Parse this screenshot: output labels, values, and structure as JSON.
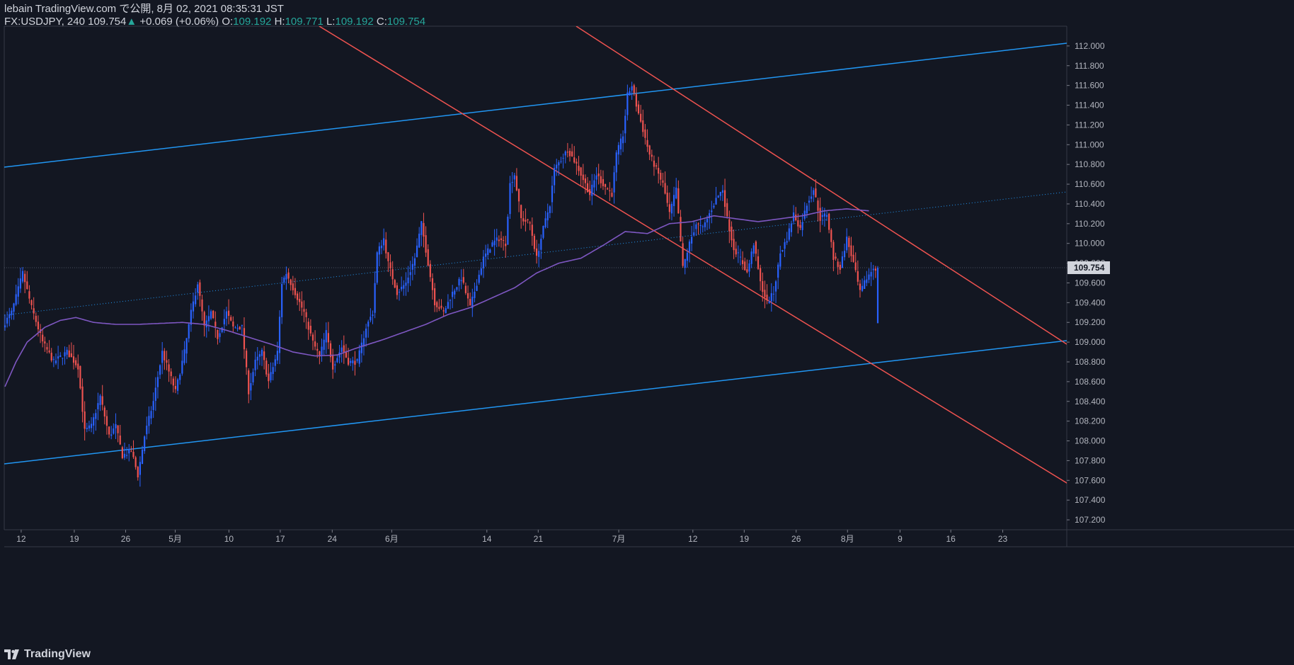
{
  "header": {
    "publish_line": "lebain TradingView.com で公開, 8月 02, 2021 08:35:31 JST",
    "symbol": "FX:USDJPY, 240",
    "last": "109.754",
    "change": "+0.069 (+0.06%)",
    "o_label": "O:",
    "o_value": "109.192",
    "h_label": "H:",
    "h_value": "109.771",
    "l_label": "L:",
    "l_value": "109.192",
    "c_label": "C:",
    "c_value": "109.754"
  },
  "footer": {
    "brand": "TradingView"
  },
  "chart_data": {
    "type": "candlestick",
    "ylim": [
      107.1,
      112.2
    ],
    "y_ticks": [
      "112.000",
      "111.800",
      "111.600",
      "111.400",
      "111.200",
      "111.000",
      "110.800",
      "110.600",
      "110.400",
      "110.200",
      "110.000",
      "109.800",
      "109.600",
      "109.400",
      "109.200",
      "109.000",
      "108.800",
      "108.600",
      "108.400",
      "108.200",
      "108.000",
      "107.800",
      "107.600",
      "107.400",
      "107.200"
    ],
    "x_ticks": [
      "12",
      "19",
      "26",
      "5月",
      "10",
      "17",
      "24",
      "6月",
      "14",
      "21",
      "7月",
      "12",
      "19",
      "26",
      "8月",
      "9",
      "16",
      "23"
    ],
    "last_price_label": "109.754",
    "colors": {
      "up": "#2962ff",
      "down": "#ef5350",
      "ma": "#7e57c2",
      "channel": "#2196f3",
      "trend": "#ef5350",
      "bg": "#131722"
    },
    "close_path": [
      [
        0,
        109.2
      ],
      [
        3,
        109.3
      ],
      [
        8,
        109.7
      ],
      [
        12,
        109.35
      ],
      [
        17,
        109.0
      ],
      [
        22,
        108.8
      ],
      [
        28,
        108.9
      ],
      [
        33,
        108.75
      ],
      [
        36,
        108.1
      ],
      [
        39,
        108.15
      ],
      [
        43,
        108.45
      ],
      [
        47,
        108.05
      ],
      [
        50,
        108.15
      ],
      [
        53,
        107.85
      ],
      [
        57,
        107.9
      ],
      [
        60,
        107.65
      ],
      [
        63,
        108.05
      ],
      [
        67,
        108.4
      ],
      [
        71,
        108.9
      ],
      [
        74,
        108.7
      ],
      [
        77,
        108.5
      ],
      [
        81,
        108.9
      ],
      [
        84,
        109.3
      ],
      [
        87,
        109.6
      ],
      [
        90,
        109.15
      ],
      [
        93,
        109.3
      ],
      [
        96,
        109.05
      ],
      [
        100,
        109.3
      ],
      [
        103,
        109.15
      ],
      [
        107,
        109.15
      ],
      [
        110,
        108.5
      ],
      [
        113,
        108.8
      ],
      [
        116,
        108.9
      ],
      [
        119,
        108.6
      ],
      [
        123,
        108.9
      ],
      [
        125,
        109.6
      ],
      [
        127,
        109.7
      ],
      [
        131,
        109.5
      ],
      [
        135,
        109.3
      ],
      [
        139,
        109.0
      ],
      [
        142,
        108.85
      ],
      [
        145,
        109.1
      ],
      [
        148,
        108.75
      ],
      [
        152,
        108.95
      ],
      [
        155,
        108.8
      ],
      [
        159,
        108.8
      ],
      [
        163,
        109.15
      ],
      [
        166,
        109.3
      ],
      [
        168,
        109.9
      ],
      [
        171,
        110.05
      ],
      [
        173,
        109.8
      ],
      [
        177,
        109.5
      ],
      [
        181,
        109.6
      ],
      [
        185,
        109.85
      ],
      [
        188,
        110.2
      ],
      [
        191,
        109.8
      ],
      [
        194,
        109.4
      ],
      [
        198,
        109.3
      ],
      [
        202,
        109.5
      ],
      [
        206,
        109.65
      ],
      [
        210,
        109.35
      ],
      [
        213,
        109.6
      ],
      [
        216,
        109.85
      ],
      [
        220,
        110.0
      ],
      [
        223,
        110.05
      ],
      [
        226,
        110.0
      ],
      [
        228,
        110.6
      ],
      [
        230,
        110.7
      ],
      [
        233,
        110.25
      ],
      [
        237,
        110.2
      ],
      [
        240,
        109.85
      ],
      [
        243,
        110.15
      ],
      [
        246,
        110.4
      ],
      [
        248,
        110.75
      ],
      [
        251,
        110.85
      ],
      [
        254,
        110.95
      ],
      [
        258,
        110.8
      ],
      [
        261,
        110.65
      ],
      [
        264,
        110.5
      ],
      [
        267,
        110.7
      ],
      [
        270,
        110.6
      ],
      [
        274,
        110.5
      ],
      [
        276,
        110.9
      ],
      [
        279,
        111.1
      ],
      [
        281,
        111.5
      ],
      [
        283,
        111.6
      ],
      [
        285,
        111.4
      ],
      [
        288,
        111.15
      ],
      [
        291,
        110.9
      ],
      [
        294,
        110.75
      ],
      [
        297,
        110.6
      ],
      [
        300,
        110.3
      ],
      [
        303,
        110.55
      ],
      [
        306,
        109.75
      ],
      [
        309,
        110.0
      ],
      [
        312,
        110.2
      ],
      [
        315,
        110.15
      ],
      [
        318,
        110.3
      ],
      [
        321,
        110.45
      ],
      [
        324,
        110.55
      ],
      [
        326,
        110.25
      ],
      [
        329,
        109.95
      ],
      [
        332,
        109.85
      ],
      [
        335,
        109.7
      ],
      [
        338,
        110.0
      ],
      [
        341,
        109.6
      ],
      [
        344,
        109.4
      ],
      [
        347,
        109.5
      ],
      [
        350,
        109.9
      ],
      [
        353,
        110.05
      ],
      [
        356,
        110.3
      ],
      [
        359,
        110.15
      ],
      [
        362,
        110.4
      ],
      [
        365,
        110.55
      ],
      [
        368,
        110.25
      ],
      [
        371,
        110.3
      ],
      [
        374,
        109.85
      ],
      [
        377,
        109.75
      ],
      [
        380,
        110.05
      ],
      [
        383,
        109.8
      ],
      [
        386,
        109.5
      ],
      [
        389,
        109.65
      ],
      [
        392,
        109.75
      ]
    ],
    "ma_path": [
      [
        0,
        108.55
      ],
      [
        5,
        108.8
      ],
      [
        10,
        109.0
      ],
      [
        18,
        109.15
      ],
      [
        25,
        109.22
      ],
      [
        32,
        109.25
      ],
      [
        40,
        109.2
      ],
      [
        50,
        109.18
      ],
      [
        60,
        109.18
      ],
      [
        70,
        109.19
      ],
      [
        80,
        109.2
      ],
      [
        90,
        109.18
      ],
      [
        100,
        109.12
      ],
      [
        110,
        109.05
      ],
      [
        120,
        108.98
      ],
      [
        130,
        108.9
      ],
      [
        140,
        108.86
      ],
      [
        150,
        108.87
      ],
      [
        160,
        108.95
      ],
      [
        170,
        109.02
      ],
      [
        180,
        109.1
      ],
      [
        190,
        109.18
      ],
      [
        200,
        109.28
      ],
      [
        210,
        109.35
      ],
      [
        220,
        109.45
      ],
      [
        230,
        109.55
      ],
      [
        240,
        109.7
      ],
      [
        250,
        109.8
      ],
      [
        260,
        109.85
      ],
      [
        270,
        109.98
      ],
      [
        280,
        110.12
      ],
      [
        290,
        110.1
      ],
      [
        300,
        110.2
      ],
      [
        310,
        110.22
      ],
      [
        320,
        110.28
      ],
      [
        330,
        110.25
      ],
      [
        340,
        110.22
      ],
      [
        350,
        110.25
      ],
      [
        360,
        110.28
      ],
      [
        370,
        110.33
      ],
      [
        380,
        110.35
      ],
      [
        390,
        110.33
      ]
    ]
  }
}
